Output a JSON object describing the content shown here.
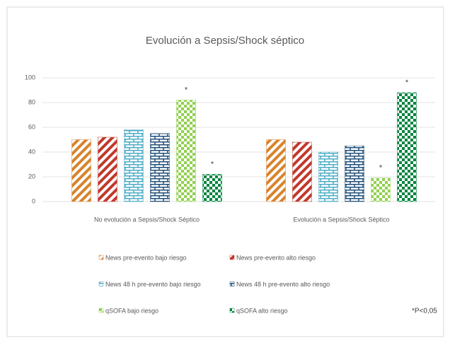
{
  "chart_data": {
    "type": "bar",
    "title": "Evolución a Sepsis/Shock séptico",
    "categories": [
      "No evolución a Sepsis/Shock Séptico",
      "Evolución a Sepsis/Shock Séptico"
    ],
    "series": [
      {
        "name": "News pre-evento  bajo riesgo",
        "color": "#d8832c",
        "pattern": "stripes",
        "values": [
          50,
          50
        ],
        "significant": [
          false,
          false
        ]
      },
      {
        "name": "News pre-evento alto riesgo",
        "color": "#c0392b",
        "pattern": "stripes",
        "values": [
          52,
          48
        ],
        "significant": [
          false,
          false
        ]
      },
      {
        "name": "News 48 h pre-evento bajo riesgo",
        "color": "#4bacc6",
        "pattern": "brick",
        "values": [
          58,
          40
        ],
        "significant": [
          false,
          false
        ]
      },
      {
        "name": "News 48 h pre-evento alto riesgo",
        "color": "#1f4e79",
        "pattern": "brick",
        "values": [
          55,
          45
        ],
        "significant": [
          false,
          false
        ]
      },
      {
        "name": "qSOFA bajo riesgo",
        "color": "#92d050",
        "pattern": "checker",
        "values": [
          82,
          19
        ],
        "significant": [
          true,
          true
        ]
      },
      {
        "name": "qSOFA alto riesgo",
        "color": "#00843f",
        "pattern": "checker",
        "values": [
          22,
          88
        ],
        "significant": [
          true,
          true
        ]
      }
    ],
    "significance_mark": "*",
    "footnote": "*P<0,05",
    "ylim": [
      0,
      100
    ],
    "yticks": [
      0,
      20,
      40,
      60,
      80,
      100
    ],
    "grid": true
  }
}
